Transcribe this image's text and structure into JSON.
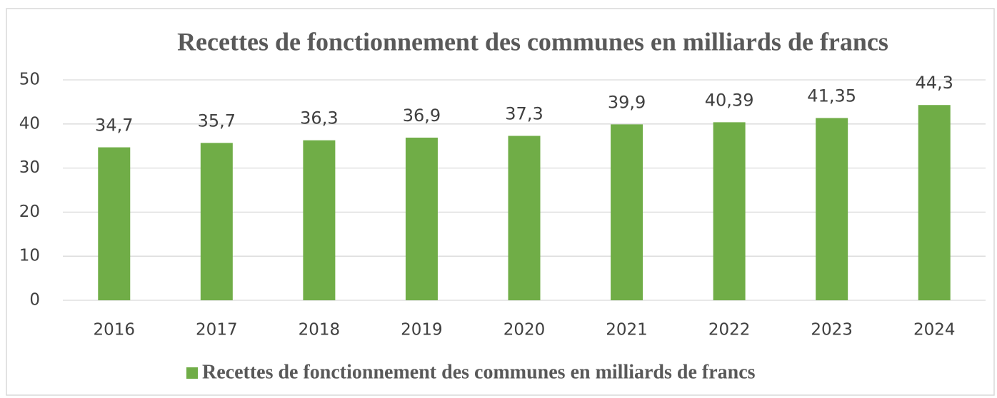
{
  "chart_data": {
    "type": "bar",
    "title": "Recettes de fonctionnement des communes en milliards de francs",
    "categories": [
      "2016",
      "2017",
      "2018",
      "2019",
      "2020",
      "2021",
      "2022",
      "2023",
      "2024"
    ],
    "series": [
      {
        "name": "Recettes de fonctionnement des communes en milliards de francs",
        "color": "#70ad47",
        "values": [
          34.7,
          35.7,
          36.3,
          36.9,
          37.3,
          39.9,
          40.39,
          41.35,
          44.3
        ],
        "value_labels": [
          "34,7",
          "35,7",
          "36,3",
          "36,9",
          "37,3",
          "39,9",
          "40,39",
          "41,35",
          "44,3"
        ]
      }
    ],
    "ylim": [
      0,
      50
    ],
    "yticks": [
      0,
      10,
      20,
      30,
      40,
      50
    ],
    "grid": true,
    "legend": "bottom"
  }
}
